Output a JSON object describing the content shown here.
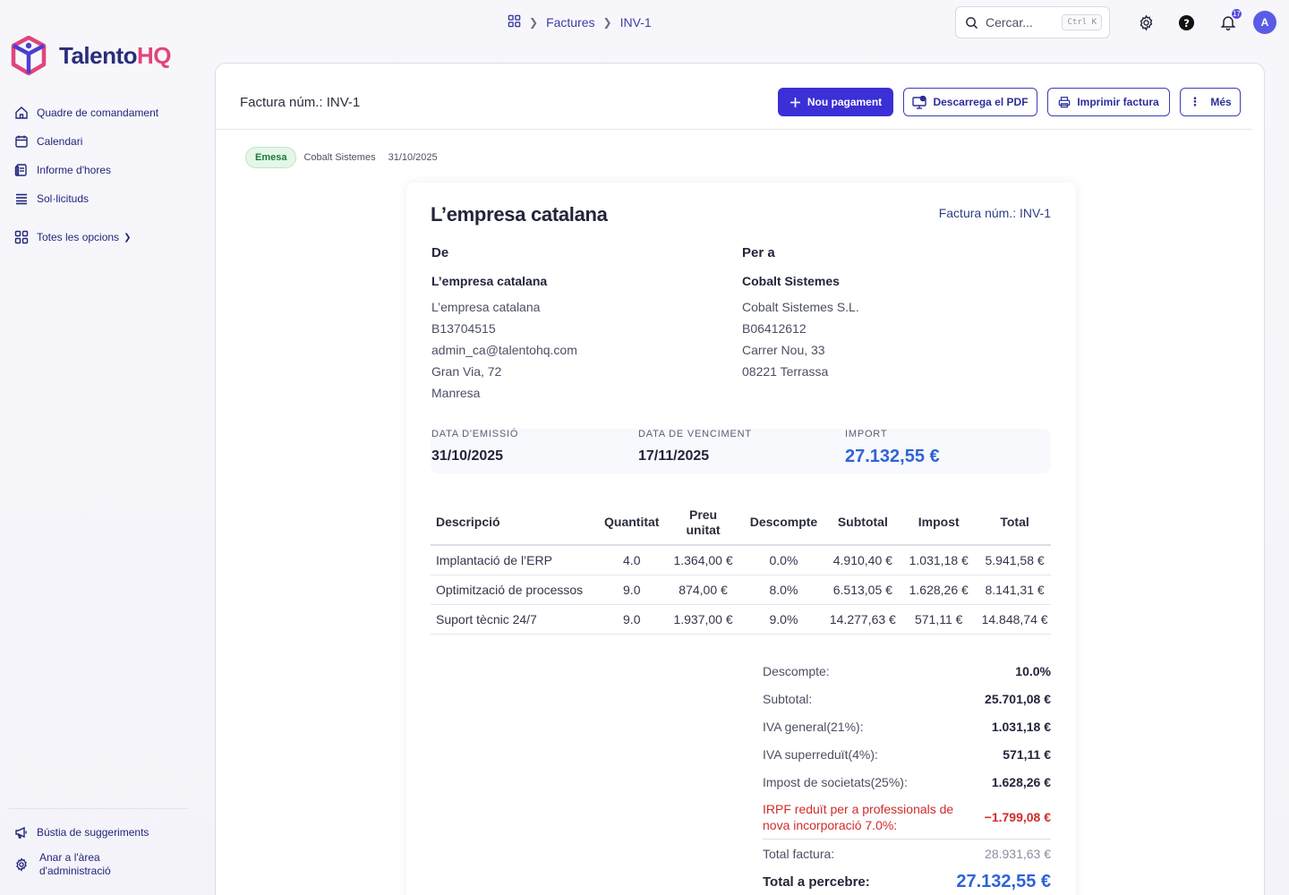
{
  "topbar": {
    "breadcrumb": [
      "Factures",
      "INV-1"
    ],
    "search_placeholder": "Cercar...",
    "search_shortcut": "Ctrl K",
    "notifications_count": "17",
    "avatar_initial": "A"
  },
  "brand": {
    "name_main": "Talento",
    "name_accent": "HQ"
  },
  "sidebar": {
    "items": [
      {
        "label": "Quadre de comandament",
        "icon": "home-icon"
      },
      {
        "label": "Calendari",
        "icon": "calendar-icon"
      },
      {
        "label": "Informe d'hores",
        "icon": "report-icon"
      },
      {
        "label": "Sol·licituds",
        "icon": "list-icon"
      }
    ],
    "all_options": "Totes les opcions",
    "bottom": [
      {
        "label": "Bústia de suggeriments",
        "icon": "megaphone-icon"
      },
      {
        "label": "Anar a l'àrea d'administració",
        "icon": "gear-icon"
      }
    ]
  },
  "header": {
    "title": "Factura núm.: INV-1",
    "actions": {
      "new_payment": "Nou pagament",
      "download_pdf": "Descarrega el PDF",
      "print": "Imprimir factura",
      "more": "Més"
    }
  },
  "status": {
    "badge": "Emesa",
    "client": "Cobalt Sistemes",
    "date": "31/10/2025"
  },
  "invoice": {
    "company": "L’empresa catalana",
    "number_label": "Factura núm.: INV-1",
    "from": {
      "heading": "De",
      "name": "L’empresa catalana",
      "lines": [
        "L’empresa catalana",
        "B13704515",
        "admin_ca@talentohq.com",
        "Gran Via, 72",
        "Manresa"
      ]
    },
    "to": {
      "heading": "Per a",
      "name": "Cobalt Sistemes",
      "lines": [
        "Cobalt Sistemes S.L.",
        "B06412612",
        "Carrer Nou, 33",
        "08221 Terrassa"
      ]
    },
    "meta": {
      "issue_label": "DATA D'EMISSIÓ",
      "issue": "31/10/2025",
      "due_label": "DATA DE VENCIMENT",
      "due": "17/11/2025",
      "amount_label": "IMPORT",
      "amount": "27.132,55 €"
    },
    "columns": [
      "Descripció",
      "Quantitat",
      "Preu unitat",
      "Descompte",
      "Subtotal",
      "Impost",
      "Total"
    ],
    "rows": [
      {
        "desc": "Implantació de l’ERP",
        "qty": "4.0",
        "price": "1.364,00 €",
        "disc": "0.0%",
        "subtotal": "4.910,40 €",
        "tax": "1.031,18 €",
        "total": "5.941,58 €"
      },
      {
        "desc": "Optimització de processos",
        "qty": "9.0",
        "price": "874,00 €",
        "disc": "8.0%",
        "subtotal": "6.513,05 €",
        "tax": "1.628,26 €",
        "total": "8.141,31 €"
      },
      {
        "desc": "Suport tècnic 24/7",
        "qty": "9.0",
        "price": "1.937,00 €",
        "disc": "9.0%",
        "subtotal": "14.277,63 €",
        "tax": "571,11 €",
        "total": "14.848,74 €"
      }
    ],
    "totals": {
      "discount_label": "Descompte:",
      "discount": "10.0%",
      "subtotal_label": "Subtotal:",
      "subtotal": "25.701,08 €",
      "vat_general_label": "IVA general(21%):",
      "vat_general": "1.031,18 €",
      "vat_super_label": "IVA superreduït(4%):",
      "vat_super": "571,11 €",
      "corp_tax_label": "Impost de societats(25%):",
      "corp_tax": "1.628,26 €",
      "irpf_label": "IRPF reduït per a professionals de nova incorporació 7.0%:",
      "irpf": "−1.799,08 €",
      "invoice_total_label": "Total factura:",
      "invoice_total": "28.931,63 €",
      "to_receive_label": "Total a percebre:",
      "to_receive": "27.132,55 €"
    }
  },
  "colors": {
    "primary": "#3b2fd6",
    "accent_blue": "#2f63d8",
    "brand_pink": "#e0457b",
    "negative": "#d12b2b",
    "badge_green": "#1b7a3a"
  }
}
